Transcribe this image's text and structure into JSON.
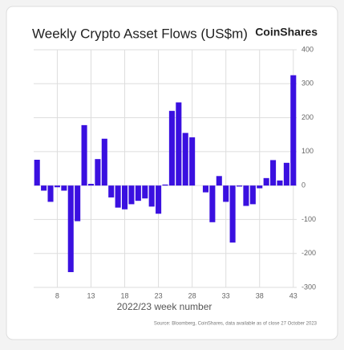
{
  "chart_data": {
    "type": "bar",
    "title": "Weekly Crypto Asset Flows (US$m)",
    "brand": "CoinShares",
    "xlabel": "2022/23 week number",
    "source": "Source: Bloomberg, CoinShares, data available as of close 27 October 2023",
    "categories": [
      null,
      null,
      null,
      8,
      null,
      null,
      null,
      null,
      13,
      null,
      null,
      null,
      null,
      18,
      null,
      null,
      null,
      null,
      23,
      null,
      null,
      null,
      null,
      28,
      null,
      null,
      null,
      null,
      33,
      null,
      null,
      null,
      null,
      38,
      null,
      null,
      null,
      null,
      43
    ],
    "values": [
      76,
      -15,
      -48,
      -5,
      -15,
      -255,
      -105,
      178,
      5,
      78,
      138,
      -35,
      -65,
      -70,
      -55,
      -45,
      -38,
      -62,
      -83,
      3,
      220,
      245,
      155,
      142,
      0,
      -20,
      -108,
      28,
      -48,
      -168,
      -3,
      -60,
      -55,
      -8,
      22,
      75,
      15,
      67,
      325
    ],
    "color": "#3a10e0",
    "ylim": [
      -300,
      400
    ],
    "yticks": [
      -300,
      -200,
      -100,
      0,
      100,
      200,
      300,
      400
    ],
    "grid": true
  }
}
